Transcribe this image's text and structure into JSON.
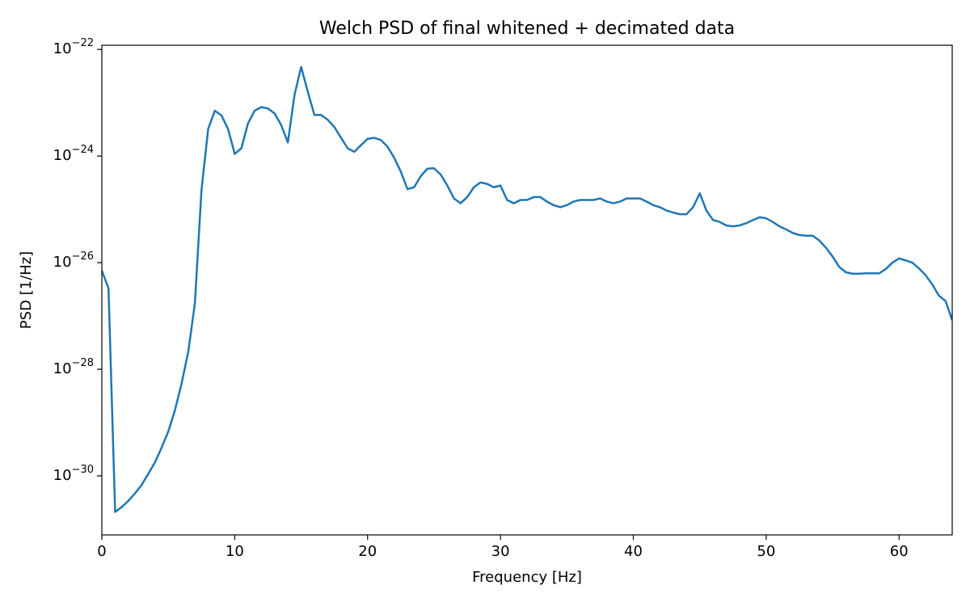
{
  "chart_data": {
    "type": "line",
    "title": "Welch PSD of final whitened + decimated data",
    "xlabel": "Frequency [Hz]",
    "ylabel": "PSD [1/Hz]",
    "yscale": "log",
    "grid": false,
    "xlim": [
      0,
      64
    ],
    "xticks": [
      0,
      10,
      20,
      30,
      40,
      50,
      60
    ],
    "ylim": [
      7.8e-32,
      1.2e-22
    ],
    "yticks": [
      {
        "value": 1e-30,
        "label": "10−30"
      },
      {
        "value": 1e-28,
        "label": "10−28"
      },
      {
        "value": 1e-26,
        "label": "10−26"
      },
      {
        "value": 1e-24,
        "label": "10−24"
      },
      {
        "value": 1e-22,
        "label": "10−22"
      }
    ],
    "x": [
      0,
      0.5,
      1,
      1.5,
      2,
      2.5,
      3,
      3.5,
      4,
      4.5,
      5,
      5.5,
      6,
      6.5,
      7,
      7.5,
      8,
      8.5,
      9,
      9.5,
      10,
      10.5,
      11,
      11.5,
      12,
      12.5,
      13,
      13.5,
      14,
      14.5,
      15,
      15.5,
      16,
      16.5,
      17,
      17.5,
      18,
      18.5,
      19,
      19.5,
      20,
      20.5,
      21,
      21.5,
      22,
      22.5,
      23,
      23.5,
      24,
      24.5,
      25,
      25.5,
      26,
      26.5,
      27,
      27.5,
      28,
      28.5,
      29,
      29.5,
      30,
      30.5,
      31,
      31.5,
      32,
      32.5,
      33,
      33.5,
      34,
      34.5,
      35,
      35.5,
      36,
      36.5,
      37,
      37.5,
      38,
      38.5,
      39,
      39.5,
      40,
      40.5,
      41,
      41.5,
      42,
      42.5,
      43,
      43.5,
      44,
      44.5,
      45,
      45.5,
      46,
      46.5,
      47,
      47.5,
      48,
      48.5,
      49,
      49.5,
      50,
      50.5,
      51,
      51.5,
      52,
      52.5,
      53,
      53.5,
      54,
      54.5,
      55,
      55.5,
      56,
      56.5,
      57,
      57.5,
      58,
      58.5,
      59,
      59.5,
      60,
      60.5,
      61,
      61.5,
      62,
      62.5,
      63,
      63.5,
      64
    ],
    "series": [
      {
        "color": "#1f77b4",
        "values": [
          7.1e-27,
          3.3e-27,
          2.1e-31,
          2.6e-31,
          3.4e-31,
          4.7e-31,
          6.8e-31,
          1.1e-30,
          1.8e-30,
          3.4e-30,
          6.8e-30,
          1.7e-29,
          5.4e-29,
          2.1e-28,
          1.7e-27,
          2.3e-25,
          3.2e-24,
          7.1e-24,
          5.8e-24,
          3.2e-24,
          1.1e-24,
          1.4e-24,
          4.1e-24,
          7.1e-24,
          8.3e-24,
          7.8e-24,
          6.3e-24,
          3.8e-24,
          1.8e-24,
          1.4e-23,
          4.7e-23,
          1.6e-23,
          5.9e-24,
          5.9e-24,
          4.8e-24,
          3.5e-24,
          2.2e-24,
          1.4e-24,
          1.2e-24,
          1.6e-24,
          2.1e-24,
          2.2e-24,
          2e-24,
          1.5e-24,
          9.3e-25,
          5.1e-25,
          2.4e-25,
          2.6e-25,
          4.2e-25,
          5.8e-25,
          5.9e-25,
          4.5e-25,
          2.8e-25,
          1.6e-25,
          1.3e-25,
          1.7e-25,
          2.6e-25,
          3.2e-25,
          3e-25,
          2.6e-25,
          2.8e-25,
          1.5e-25,
          1.3e-25,
          1.5e-25,
          1.5e-25,
          1.7e-25,
          1.7e-25,
          1.4e-25,
          1.2e-25,
          1.1e-25,
          1.2e-25,
          1.4e-25,
          1.5e-25,
          1.5e-25,
          1.5e-25,
          1.6e-25,
          1.4e-25,
          1.3e-25,
          1.4e-25,
          1.6e-25,
          1.6e-25,
          1.6e-25,
          1.4e-25,
          1.2e-25,
          1.1e-25,
          9.5e-26,
          8.7e-26,
          8.1e-26,
          8.1e-26,
          1.1e-25,
          2e-25,
          9.5e-26,
          6.3e-26,
          5.8e-26,
          5e-26,
          4.8e-26,
          5e-26,
          5.5e-26,
          6.3e-26,
          7.1e-26,
          6.8e-26,
          5.8e-26,
          4.8e-26,
          4.2e-26,
          3.6e-26,
          3.3e-26,
          3.2e-26,
          3.2e-26,
          2.6e-26,
          1.9e-26,
          1.3e-26,
          8.3e-27,
          6.6e-27,
          6.2e-27,
          6.2e-27,
          6.3e-27,
          6.3e-27,
          6.3e-27,
          7.6e-27,
          1e-26,
          1.2e-26,
          1.1e-26,
          1e-26,
          7.8e-27,
          5.8e-27,
          3.9e-27,
          2.4e-27,
          1.9e-27,
          8.3e-28
        ]
      }
    ]
  }
}
